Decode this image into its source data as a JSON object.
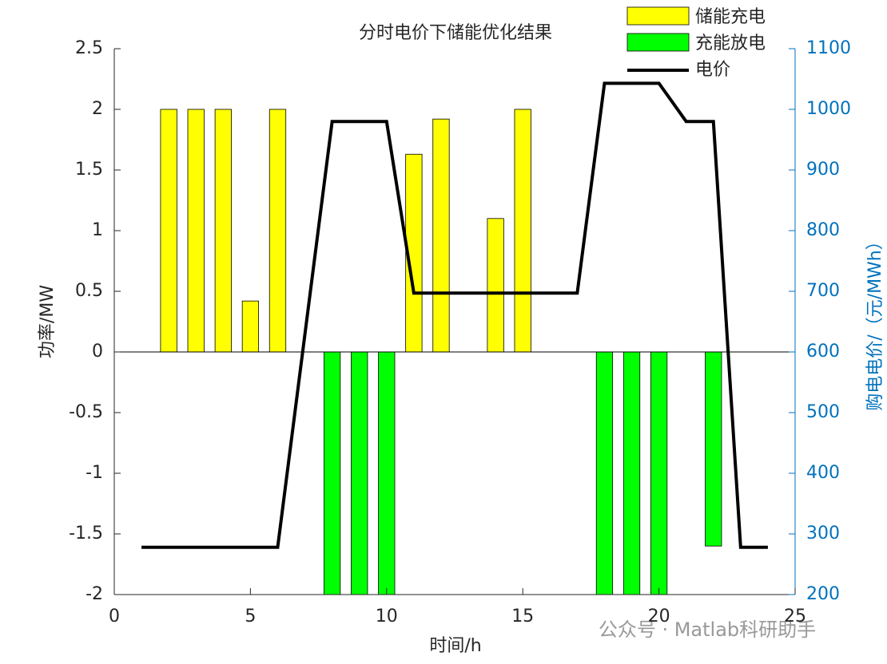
{
  "chart_data": {
    "type": "bar-line",
    "title": "分时电价下储能优化结果",
    "xlabel": "时间/h",
    "ylabel": "功率/MW",
    "y2label": "购电电价/（元/MWh）",
    "x": [
      1,
      2,
      3,
      4,
      5,
      6,
      7,
      8,
      9,
      10,
      11,
      12,
      13,
      14,
      15,
      16,
      17,
      18,
      19,
      20,
      21,
      22,
      23,
      24
    ],
    "series": [
      {
        "name": "储能充电",
        "type": "bar",
        "color": "#ffff00",
        "values": [
          0,
          2,
          2,
          2,
          0.42,
          2,
          0,
          0,
          0,
          0,
          1.63,
          1.92,
          0,
          1.1,
          2,
          0,
          0,
          0,
          0,
          0,
          0,
          0,
          0,
          0
        ]
      },
      {
        "name": "充能放电",
        "type": "bar",
        "color": "#00ff00",
        "values": [
          0,
          0,
          0,
          0,
          0,
          0,
          0,
          -2,
          -2,
          -2,
          0,
          0,
          0,
          0,
          0,
          0,
          0,
          -2,
          -2,
          -2,
          0,
          -1.6,
          0,
          0
        ]
      },
      {
        "name": "电价",
        "type": "line",
        "axis": "y2",
        "color": "#000000",
        "values": [
          278,
          278,
          278,
          278,
          278,
          278,
          629,
          980,
          980,
          980,
          697,
          697,
          697,
          697,
          697,
          697,
          697,
          1043,
          1043,
          1043,
          980,
          980,
          278,
          278
        ]
      }
    ],
    "xlim": [
      0,
      25
    ],
    "xticks": [
      0,
      5,
      10,
      15,
      20,
      25
    ],
    "ylim": [
      -2,
      2.5
    ],
    "yticks": [
      -2,
      -1.5,
      -1,
      -0.5,
      0,
      0.5,
      1,
      1.5,
      2,
      2.5
    ],
    "y2lim": [
      200,
      1100
    ],
    "y2ticks": [
      200,
      300,
      400,
      500,
      600,
      700,
      800,
      900,
      1000,
      1100
    ],
    "y2color": "#0072bd",
    "legend": "northeast",
    "watermark": "公众号 · Matlab科研助手"
  }
}
